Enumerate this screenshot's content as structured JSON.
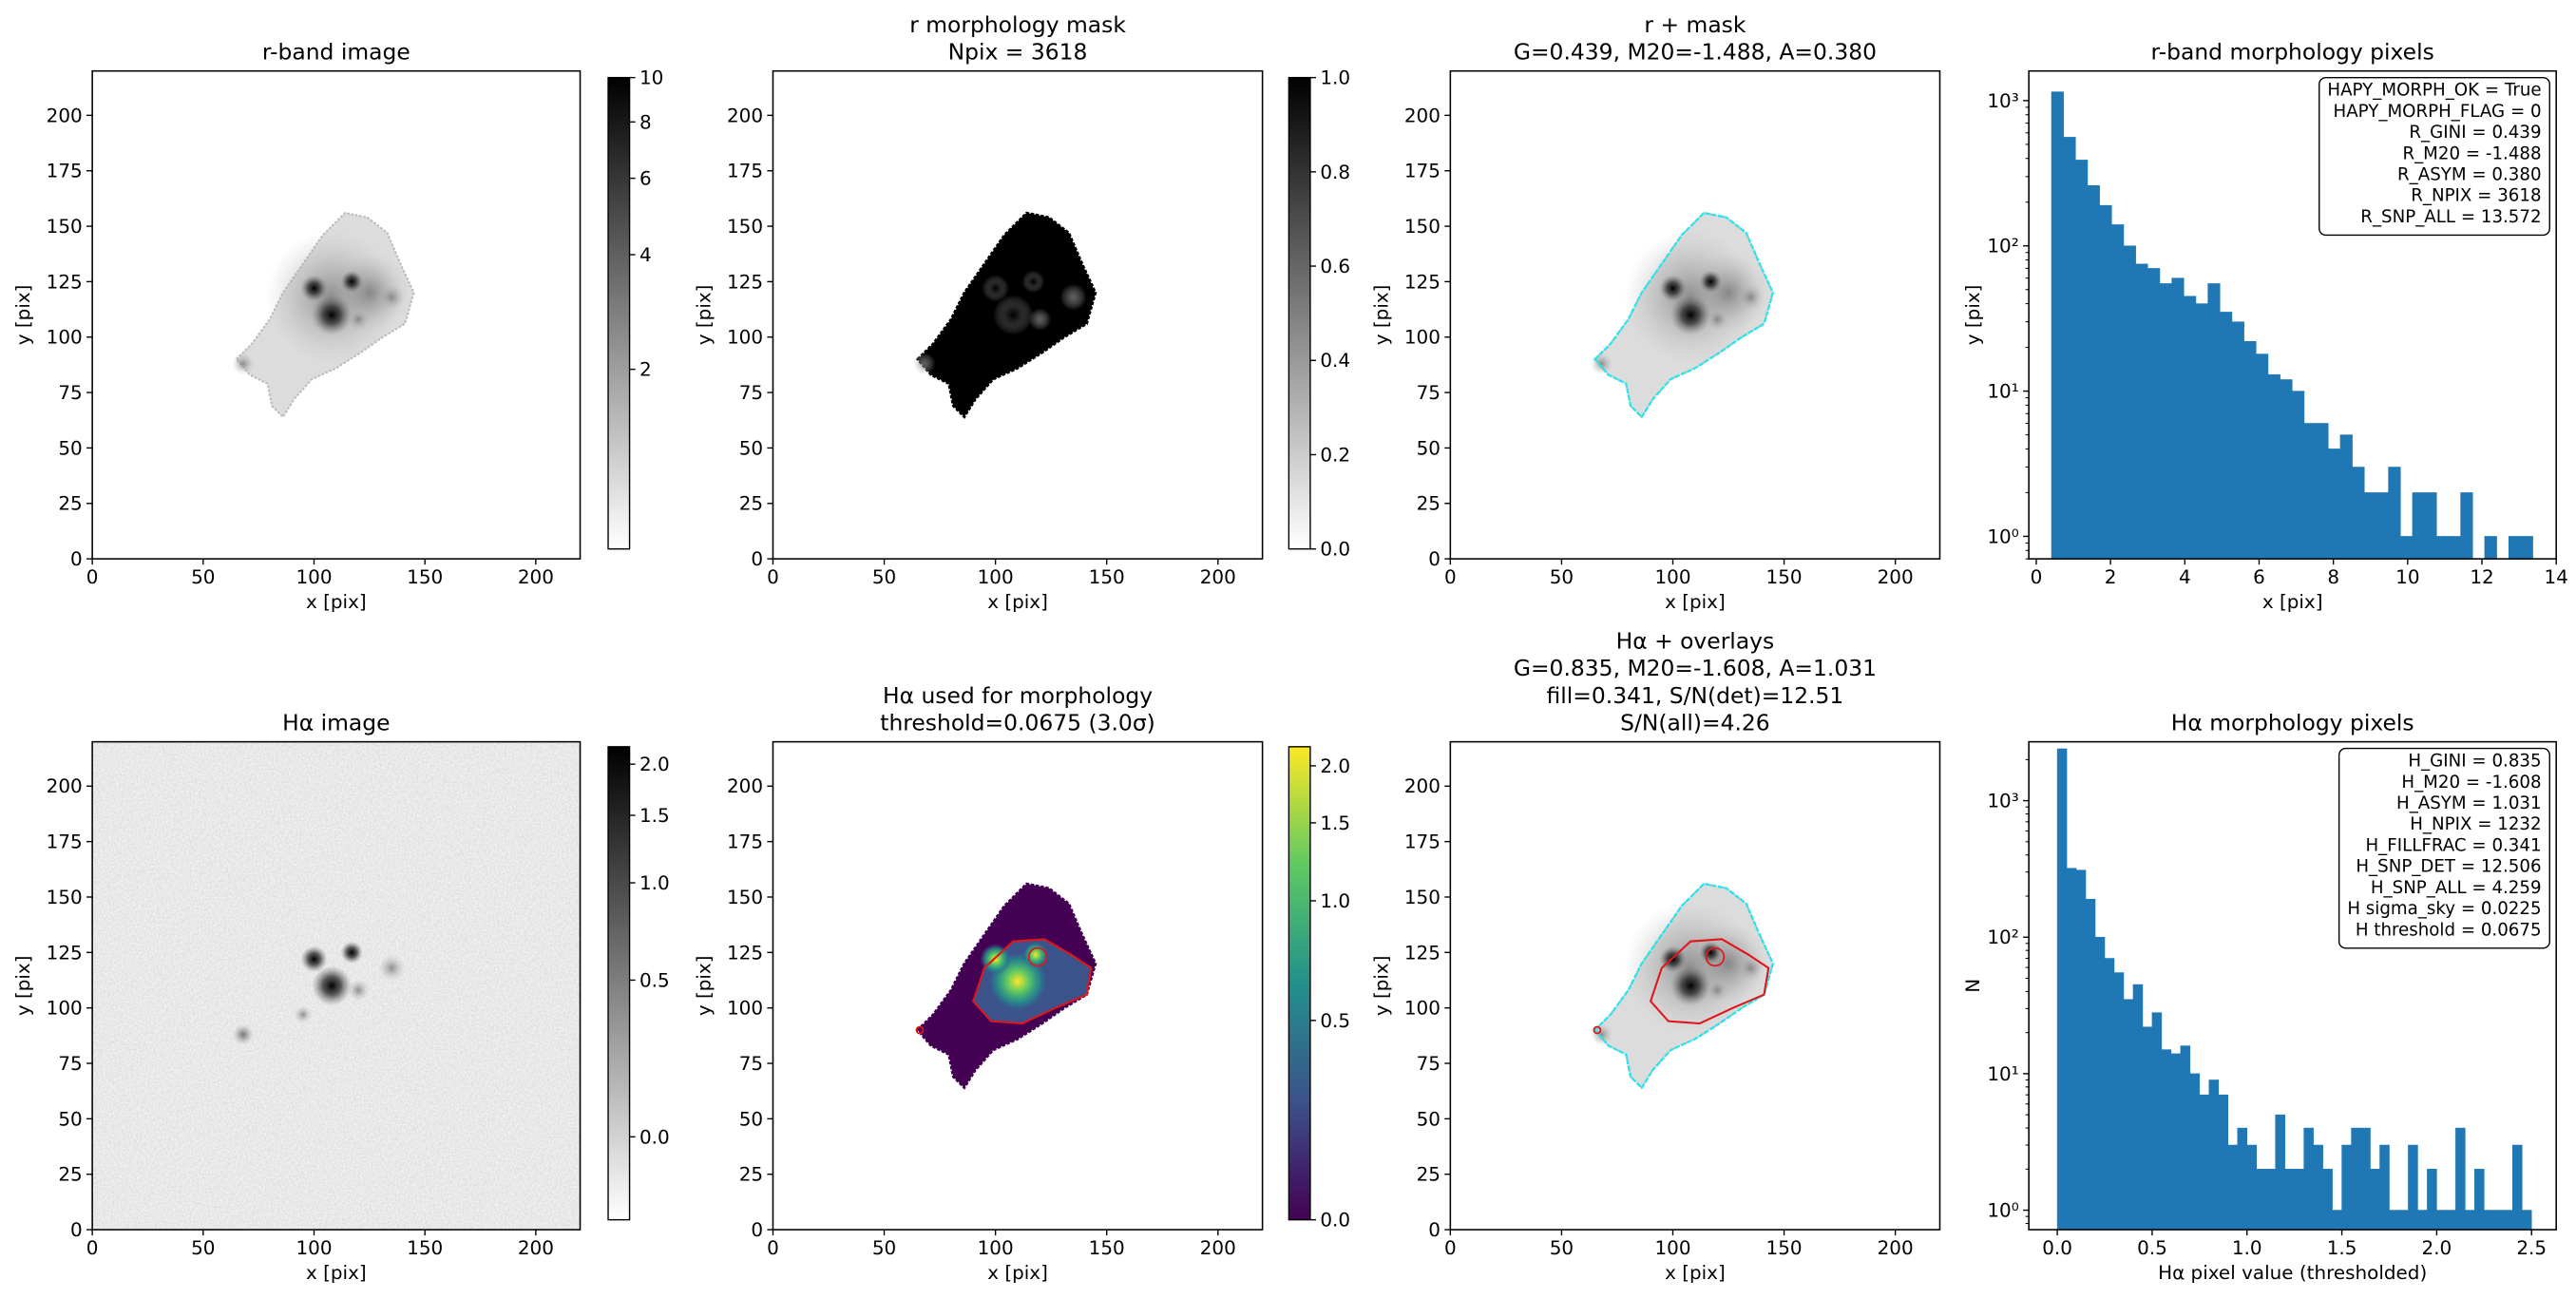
{
  "chart_data": [
    {
      "type": "image",
      "title": [
        "r-band image"
      ],
      "xlabel": "x [pix]",
      "ylabel": "y [pix]",
      "xlim": [
        0,
        220
      ],
      "ylim": [
        0,
        220
      ],
      "xticks": [
        0,
        50,
        100,
        150,
        200
      ],
      "yticks": [
        0,
        25,
        50,
        75,
        100,
        125,
        150,
        175,
        200
      ],
      "cmap": "gray_r",
      "colorbar": {
        "lim": [
          0,
          10
        ],
        "ticks": [
          2,
          4,
          6,
          8,
          10
        ],
        "stretch": "asinh"
      }
    },
    {
      "type": "image",
      "title": [
        "r morphology mask",
        "Npix = 3618"
      ],
      "xlabel": "x [pix]",
      "ylabel": "y [pix]",
      "xlim": [
        0,
        220
      ],
      "ylim": [
        0,
        220
      ],
      "xticks": [
        0,
        50,
        100,
        150,
        200
      ],
      "yticks": [
        0,
        25,
        50,
        75,
        100,
        125,
        150,
        175,
        200
      ],
      "cmap": "gray_r",
      "colorbar": {
        "lim": [
          0,
          1
        ],
        "ticks": [
          {
            "value": 0,
            "label": "0.0"
          },
          {
            "value": 0.2,
            "label": "0.2"
          },
          {
            "value": 0.4,
            "label": "0.4"
          },
          {
            "value": 0.6,
            "label": "0.6"
          },
          {
            "value": 0.8,
            "label": "0.8"
          },
          {
            "value": 1,
            "label": "1.0"
          }
        ],
        "stretch": "linear"
      }
    },
    {
      "type": "image",
      "title": [
        "r + mask",
        "G=0.439, M20=-1.488, A=0.380"
      ],
      "xlabel": "x [pix]",
      "ylabel": "y [pix]",
      "xlim": [
        0,
        220
      ],
      "ylim": [
        0,
        220
      ],
      "xticks": [
        0,
        50,
        100,
        150,
        200
      ],
      "yticks": [
        0,
        25,
        50,
        75,
        100,
        125,
        150,
        175,
        200
      ],
      "cmap": "gray_r",
      "contours": [
        "cyan"
      ]
    },
    {
      "type": "histogram",
      "title": [
        "r-band morphology pixels"
      ],
      "xlabel": "x [pix]",
      "ylabel": "y [pix]",
      "color": "#1f77b4",
      "log_y": true,
      "xlim": [
        -0.2,
        14
      ],
      "ylim": [
        0.7,
        1600
      ],
      "xticks": [
        0,
        2,
        4,
        6,
        8,
        10,
        12,
        14
      ],
      "yticks": [
        {
          "value": 1,
          "label": "10⁰"
        },
        {
          "value": 10,
          "label": "10¹"
        },
        {
          "value": 100,
          "label": "10²"
        },
        {
          "value": 1000,
          "label": "10³"
        }
      ],
      "bins": [
        0.41,
        0.734,
        1.058,
        1.382,
        1.706,
        2.03,
        2.354,
        2.678,
        3.002,
        3.326,
        3.65,
        3.974,
        4.298,
        4.622,
        4.946,
        5.27,
        5.594,
        5.918,
        6.242,
        6.566,
        6.89,
        7.214,
        7.538,
        7.862,
        8.186,
        8.51,
        8.834,
        9.158,
        9.482,
        9.806,
        10.13,
        10.454,
        10.778,
        11.102,
        11.426,
        11.75,
        12.074,
        12.398,
        12.722,
        13.046,
        13.37
      ],
      "counts": [
        1150,
        560,
        390,
        260,
        190,
        140,
        100,
        75,
        70,
        55,
        60,
        45,
        40,
        55,
        35,
        30,
        22,
        18,
        13,
        12,
        10,
        6,
        6,
        4,
        5,
        3,
        2,
        2,
        3,
        1,
        2,
        2,
        1,
        1,
        2,
        0,
        1,
        0,
        1,
        1
      ],
      "annotation": [
        "HAPY_MORPH_OK = True",
        "HAPY_MORPH_FLAG = 0",
        "R_GINI = 0.439",
        "R_M20 = -1.488",
        "R_ASYM = 0.380",
        "R_NPIX = 3618",
        "R_SNP_ALL = 13.572"
      ]
    },
    {
      "type": "image",
      "title": [
        "Hα image"
      ],
      "xlabel": "x [pix]",
      "ylabel": "y [pix]",
      "xlim": [
        0,
        220
      ],
      "ylim": [
        0,
        220
      ],
      "xticks": [
        0,
        50,
        100,
        150,
        200
      ],
      "yticks": [
        0,
        25,
        50,
        75,
        100,
        125,
        150,
        175,
        200
      ],
      "cmap": "gray_r",
      "colorbar": {
        "lim": [
          -0.2,
          2.2
        ],
        "ticks": [
          {
            "value": 0,
            "label": "0.0"
          },
          {
            "value": 0.5,
            "label": "0.5"
          },
          {
            "value": 1,
            "label": "1.0"
          },
          {
            "value": 1.5,
            "label": "1.5"
          },
          {
            "value": 2,
            "label": "2.0"
          }
        ],
        "stretch": "asinh"
      }
    },
    {
      "type": "image",
      "title": [
        "Hα used for morphology",
        "threshold=0.0675 (3.0σ)"
      ],
      "xlabel": "x [pix]",
      "ylabel": "y [pix]",
      "xlim": [
        0,
        220
      ],
      "ylim": [
        0,
        220
      ],
      "xticks": [
        0,
        50,
        100,
        150,
        200
      ],
      "yticks": [
        0,
        25,
        50,
        75,
        100,
        125,
        150,
        175,
        200
      ],
      "cmap": "viridis",
      "contours": [
        "red"
      ],
      "colorbar": {
        "lim": [
          0,
          2.2
        ],
        "ticks": [
          {
            "value": 0,
            "label": "0.0"
          },
          {
            "value": 0.5,
            "label": "0.5"
          },
          {
            "value": 1,
            "label": "1.0"
          },
          {
            "value": 1.5,
            "label": "1.5"
          },
          {
            "value": 2,
            "label": "2.0"
          }
        ],
        "stretch": "asinh"
      }
    },
    {
      "type": "image",
      "title": [
        "Hα + overlays",
        "G=0.835, M20=-1.608, A=1.031",
        "fill=0.341, S/N(det)=12.51",
        "S/N(all)=4.26"
      ],
      "xlabel": "x [pix]",
      "ylabel": "y [pix]",
      "xlim": [
        0,
        220
      ],
      "ylim": [
        0,
        220
      ],
      "xticks": [
        0,
        50,
        100,
        150,
        200
      ],
      "yticks": [
        0,
        25,
        50,
        75,
        100,
        125,
        150,
        175,
        200
      ],
      "cmap": "gray_r",
      "contours": [
        "cyan",
        "red"
      ]
    },
    {
      "type": "histogram",
      "title": [
        "Hα morphology pixels"
      ],
      "xlabel": "Hα pixel value (thresholded)",
      "ylabel": "N",
      "color": "#1f77b4",
      "log_y": true,
      "xlim": [
        -0.15,
        2.63
      ],
      "ylim": [
        0.72,
        2700
      ],
      "xticks": [
        {
          "value": 0,
          "label": "0.0"
        },
        {
          "value": 0.5,
          "label": "0.5"
        },
        {
          "value": 1,
          "label": "1.0"
        },
        {
          "value": 1.5,
          "label": "1.5"
        },
        {
          "value": 2,
          "label": "2.0"
        },
        {
          "value": 2.5,
          "label": "2.5"
        }
      ],
      "yticks": [
        {
          "value": 1,
          "label": "10⁰"
        },
        {
          "value": 10,
          "label": "10¹"
        },
        {
          "value": 100,
          "label": "10²"
        },
        {
          "value": 1000,
          "label": "10³"
        }
      ],
      "bins": [
        0,
        0.05,
        0.1,
        0.15,
        0.2,
        0.25,
        0.3,
        0.35,
        0.4,
        0.45,
        0.5,
        0.55,
        0.6,
        0.65,
        0.7,
        0.75,
        0.8,
        0.85,
        0.9,
        0.95,
        1,
        1.05,
        1.1,
        1.15,
        1.2,
        1.25,
        1.3,
        1.35,
        1.4,
        1.45,
        1.5,
        1.55,
        1.6,
        1.65,
        1.7,
        1.75,
        1.8,
        1.85,
        1.9,
        1.95,
        2,
        2.05,
        2.1,
        2.15,
        2.2,
        2.25,
        2.3,
        2.35,
        2.4,
        2.45,
        2.5
      ],
      "counts": [
        2400,
        320,
        310,
        190,
        100,
        70,
        55,
        35,
        45,
        22,
        28,
        15,
        14,
        16,
        10,
        7,
        9,
        7,
        3,
        4,
        3,
        2,
        2,
        5,
        2,
        2,
        4,
        3,
        2,
        1,
        3,
        4,
        4,
        2,
        3,
        1,
        1,
        3,
        1,
        2,
        1,
        1,
        4,
        1,
        2,
        1,
        1,
        1,
        3,
        1
      ],
      "annotation": [
        "H_GINI = 0.835",
        "H_M20 = -1.608",
        "H_ASYM = 1.031",
        "H_NPIX = 1232",
        "H_FILLFRAC = 0.341",
        "H_SNP_DET = 12.506",
        "H_SNP_ALL = 4.259",
        "H sigma_sky = 0.0225",
        "H threshold = 0.0675"
      ]
    }
  ]
}
